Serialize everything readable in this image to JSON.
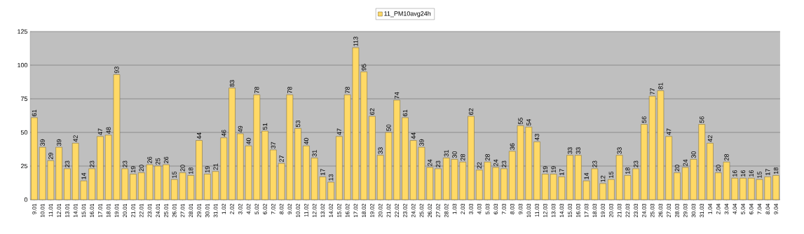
{
  "chart_data": {
    "type": "bar",
    "categories": [
      "9.01",
      "10.01",
      "11.01",
      "12.01",
      "13.01",
      "14.01",
      "15.01",
      "16.01",
      "17.01",
      "18.01",
      "19.01",
      "20.01",
      "21.01",
      "22.01",
      "23.01",
      "24.01",
      "25.01",
      "26.01",
      "27.01",
      "28.01",
      "29.01",
      "30.01",
      "31.01",
      "1.02",
      "2.02",
      "3.02",
      "4.02",
      "5.02",
      "6.02",
      "7.02",
      "8.02",
      "9.02",
      "10.02",
      "11.02",
      "12.02",
      "13.02",
      "14.02",
      "15.02",
      "16.02",
      "17.02",
      "18.02",
      "19.02",
      "20.02",
      "21.02",
      "22.02",
      "23.02",
      "24.02",
      "25.02",
      "26.02",
      "27.02",
      "28.02",
      "1.03",
      "2.03",
      "3.03",
      "4.03",
      "5.03",
      "6.03",
      "7.03",
      "8.03",
      "9.03",
      "10.03",
      "11.03",
      "12.03",
      "13.03",
      "14.03",
      "15.03",
      "16.03",
      "17.03",
      "18.03",
      "19.03",
      "20.03",
      "21.03",
      "22.03",
      "23.03",
      "24.03",
      "25.03",
      "26.03",
      "27.03",
      "28.03",
      "29.03",
      "30.03",
      "31.03",
      "1.04",
      "2.04",
      "3.04",
      "4.04",
      "5.04",
      "6.04",
      "7.04",
      "8.04",
      "9.04"
    ],
    "series": [
      {
        "name": "11_PM10avg24h",
        "color": "#ffd966",
        "values": [
          61,
          39,
          29,
          39,
          23,
          42,
          14,
          23,
          47,
          48,
          93,
          23,
          19,
          20,
          26,
          25,
          26,
          15,
          20,
          18,
          44,
          19,
          21,
          46,
          83,
          49,
          40,
          78,
          51,
          37,
          27,
          78,
          53,
          40,
          31,
          17,
          13,
          47,
          78,
          113,
          95,
          62,
          33,
          50,
          74,
          61,
          44,
          39,
          24,
          23,
          31,
          30,
          28,
          62,
          22,
          28,
          24,
          23,
          36,
          55,
          54,
          43,
          19,
          19,
          17,
          33,
          33,
          14,
          23,
          12,
          15,
          33,
          18,
          23,
          56,
          77,
          81,
          47,
          20,
          24,
          30,
          56,
          42,
          20,
          28,
          16,
          16,
          16,
          15,
          17,
          18
        ]
      }
    ],
    "ylim": [
      0,
      125
    ],
    "yticks": [
      0,
      25,
      50,
      75,
      100,
      125
    ],
    "grid": "y",
    "legend": "top",
    "data_labels": true
  }
}
